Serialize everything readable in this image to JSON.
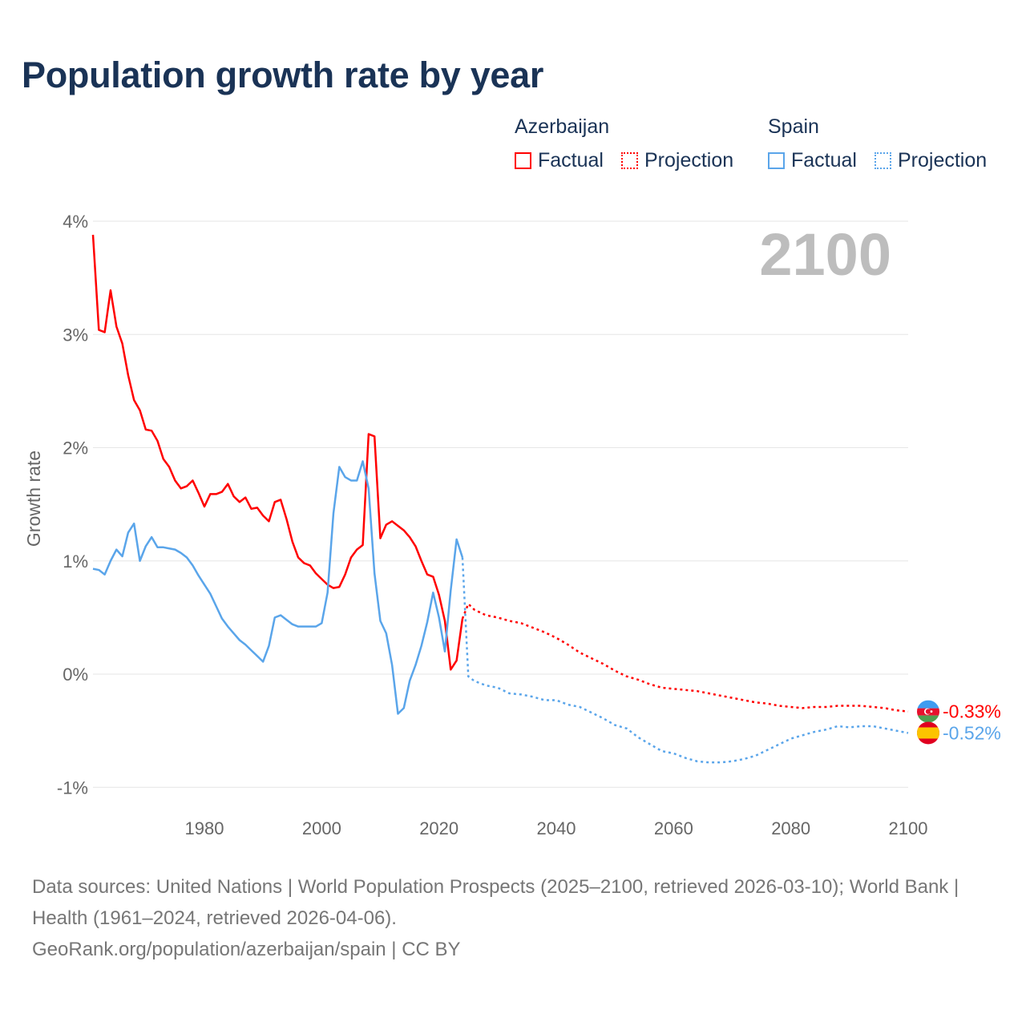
{
  "title": "Population growth rate by year",
  "legend": {
    "groups": [
      {
        "name": "Azerbaijan",
        "color": "#ff0000",
        "factual": "Factual",
        "projection": "Projection"
      },
      {
        "name": "Spain",
        "color": "#5aa5ea",
        "factual": "Factual",
        "projection": "Projection"
      }
    ]
  },
  "year_overlay": "2100",
  "footer": {
    "sources": "Data sources: United Nations | World Population Prospects (2025–2100, retrieved 2026-03-10); World Bank | Health (1961–2024, retrieved 2026-04-06).",
    "credit": "GeoRank.org/population/azerbaijan/spain | CC BY"
  },
  "chart_data": {
    "type": "line",
    "title": "Population growth rate by year",
    "xlabel": "",
    "ylabel": "Growth rate",
    "xlim": [
      1961,
      2100
    ],
    "ylim": [
      -1.2,
      4.1
    ],
    "x_ticks": [
      1980,
      2000,
      2020,
      2040,
      2060,
      2080,
      2100
    ],
    "y_ticks": [
      {
        "v": 4,
        "label": "4%"
      },
      {
        "v": 3,
        "label": "3%"
      },
      {
        "v": 2,
        "label": "2%"
      },
      {
        "v": 1,
        "label": "1%"
      },
      {
        "v": 0,
        "label": "0%"
      },
      {
        "v": -1,
        "label": "-1%"
      }
    ],
    "grid": true,
    "legend_position": "top-right",
    "series": [
      {
        "name": "Azerbaijan",
        "color": "#ff0000",
        "end_label": "-0.33%",
        "factual": {
          "start": 1961,
          "values": [
            3.88,
            3.04,
            3.02,
            3.39,
            3.07,
            2.92,
            2.64,
            2.42,
            2.33,
            2.16,
            2.15,
            2.06,
            1.9,
            1.83,
            1.71,
            1.64,
            1.66,
            1.71,
            1.6,
            1.48,
            1.59,
            1.59,
            1.61,
            1.68,
            1.57,
            1.52,
            1.56,
            1.46,
            1.47,
            1.4,
            1.35,
            1.52,
            1.54,
            1.37,
            1.17,
            1.03,
            0.98,
            0.96,
            0.89,
            0.84,
            0.79,
            0.76,
            0.77,
            0.88,
            1.03,
            1.1,
            1.14,
            2.12,
            2.1,
            1.2,
            1.32,
            1.35,
            1.31,
            1.27,
            1.21,
            1.13,
            1.0,
            0.88,
            0.86,
            0.7,
            0.47,
            0.04,
            0.12,
            0.49
          ]
        },
        "projection": {
          "x": [
            2025,
            2026,
            2028,
            2030,
            2032,
            2034,
            2036,
            2038,
            2040,
            2042,
            2044,
            2046,
            2048,
            2050,
            2052,
            2054,
            2056,
            2058,
            2060,
            2062,
            2064,
            2066,
            2068,
            2070,
            2072,
            2074,
            2076,
            2078,
            2080,
            2082,
            2084,
            2086,
            2088,
            2090,
            2092,
            2094,
            2096,
            2098,
            2100
          ],
          "values": [
            0.62,
            0.57,
            0.52,
            0.5,
            0.47,
            0.45,
            0.41,
            0.37,
            0.32,
            0.26,
            0.19,
            0.14,
            0.09,
            0.03,
            -0.02,
            -0.05,
            -0.09,
            -0.12,
            -0.13,
            -0.14,
            -0.15,
            -0.17,
            -0.19,
            -0.21,
            -0.23,
            -0.25,
            -0.26,
            -0.28,
            -0.29,
            -0.3,
            -0.29,
            -0.29,
            -0.28,
            -0.28,
            -0.28,
            -0.29,
            -0.3,
            -0.32,
            -0.33
          ]
        }
      },
      {
        "name": "Spain",
        "color": "#5aa5ea",
        "end_label": "-0.52%",
        "factual": {
          "start": 1961,
          "values": [
            0.93,
            0.92,
            0.88,
            1.0,
            1.1,
            1.04,
            1.25,
            1.33,
            1.0,
            1.13,
            1.21,
            1.12,
            1.12,
            1.11,
            1.1,
            1.07,
            1.03,
            0.96,
            0.87,
            0.79,
            0.71,
            0.6,
            0.49,
            0.42,
            0.36,
            0.3,
            0.26,
            0.21,
            0.16,
            0.11,
            0.25,
            0.5,
            0.52,
            0.48,
            0.44,
            0.42,
            0.42,
            0.42,
            0.42,
            0.45,
            0.72,
            1.42,
            1.83,
            1.74,
            1.71,
            1.71,
            1.88,
            1.64,
            0.89,
            0.47,
            0.36,
            0.08,
            -0.35,
            -0.3,
            -0.06,
            0.08,
            0.25,
            0.46,
            0.72,
            0.5,
            0.2,
            0.74,
            1.19,
            1.03
          ]
        },
        "projection": {
          "x": [
            2025,
            2026,
            2028,
            2030,
            2032,
            2034,
            2036,
            2038,
            2040,
            2042,
            2044,
            2046,
            2048,
            2050,
            2052,
            2054,
            2056,
            2058,
            2060,
            2062,
            2064,
            2066,
            2068,
            2070,
            2072,
            2074,
            2076,
            2078,
            2080,
            2082,
            2084,
            2086,
            2088,
            2090,
            2092,
            2094,
            2096,
            2098,
            2100
          ],
          "values": [
            -0.02,
            -0.06,
            -0.1,
            -0.12,
            -0.17,
            -0.18,
            -0.2,
            -0.23,
            -0.23,
            -0.27,
            -0.29,
            -0.34,
            -0.39,
            -0.45,
            -0.48,
            -0.56,
            -0.62,
            -0.68,
            -0.7,
            -0.74,
            -0.77,
            -0.78,
            -0.78,
            -0.77,
            -0.75,
            -0.72,
            -0.67,
            -0.62,
            -0.57,
            -0.54,
            -0.51,
            -0.49,
            -0.46,
            -0.47,
            -0.46,
            -0.46,
            -0.48,
            -0.5,
            -0.52
          ]
        }
      }
    ]
  }
}
